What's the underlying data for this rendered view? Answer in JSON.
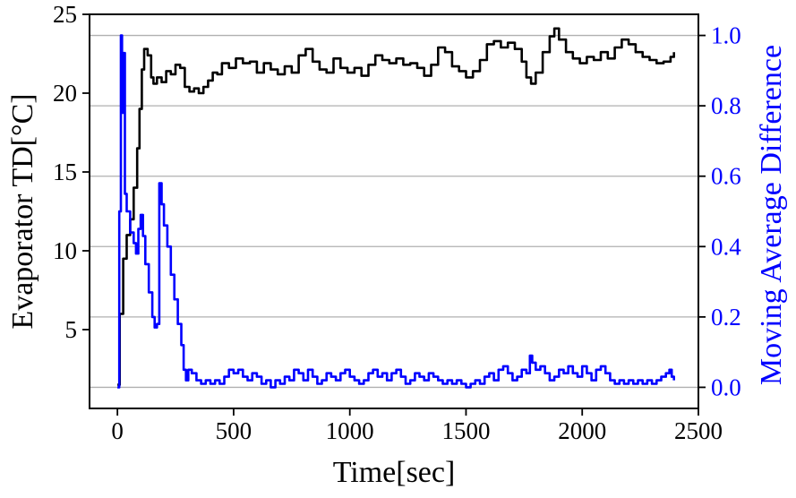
{
  "chart_data": {
    "type": "line",
    "xlabel": "Time[sec]",
    "ylabel_left": "Evaporator TD[°C]",
    "ylabel_right": "Moving Average Difference",
    "xlim": [
      -120,
      2500
    ],
    "ylim_left": [
      0,
      25
    ],
    "ylim_right": [
      -0.06,
      1.06
    ],
    "x_ticks": [
      0,
      500,
      1000,
      1500,
      2000,
      2500
    ],
    "y_ticks_left": [
      5,
      10,
      15,
      20,
      25
    ],
    "y_ticks_right": [
      0.0,
      0.2,
      0.4,
      0.6,
      0.8,
      1.0
    ],
    "y_tick_labels_right": [
      "0.0",
      "0.2",
      "0.4",
      "0.6",
      "0.8",
      "1.0"
    ],
    "grid": "horizontal-right-axis",
    "colors": {
      "left_series": "#000000",
      "right_series": "#0000ff",
      "right_axis": "#0000ff",
      "grid": "#b0b0b0"
    },
    "series": [
      {
        "axis": "left",
        "color": "#000000",
        "points": [
          [
            0,
            1.5
          ],
          [
            10,
            6
          ],
          [
            25,
            9.5
          ],
          [
            40,
            11
          ],
          [
            55,
            12
          ],
          [
            70,
            14
          ],
          [
            85,
            16.5
          ],
          [
            95,
            19
          ],
          [
            105,
            21.5
          ],
          [
            115,
            22.8
          ],
          [
            130,
            22.4
          ],
          [
            145,
            21
          ],
          [
            155,
            20.6
          ],
          [
            170,
            21
          ],
          [
            190,
            20.7
          ],
          [
            210,
            21.4
          ],
          [
            230,
            21.2
          ],
          [
            250,
            21.8
          ],
          [
            270,
            21.6
          ],
          [
            290,
            20.4
          ],
          [
            310,
            20.1
          ],
          [
            330,
            20.3
          ],
          [
            350,
            20
          ],
          [
            370,
            20.4
          ],
          [
            390,
            20.8
          ],
          [
            410,
            21.3
          ],
          [
            430,
            21.2
          ],
          [
            450,
            21.9
          ],
          [
            480,
            21.6
          ],
          [
            510,
            22.2
          ],
          [
            540,
            21.9
          ],
          [
            570,
            22.0
          ],
          [
            600,
            21.3
          ],
          [
            630,
            21.9
          ],
          [
            660,
            21.5
          ],
          [
            690,
            21.2
          ],
          [
            720,
            21.7
          ],
          [
            750,
            21.3
          ],
          [
            780,
            22.4
          ],
          [
            810,
            22.8
          ],
          [
            840,
            22.0
          ],
          [
            870,
            21.5
          ],
          [
            900,
            21.3
          ],
          [
            930,
            22.2
          ],
          [
            960,
            21.6
          ],
          [
            990,
            21.3
          ],
          [
            1020,
            21.6
          ],
          [
            1050,
            21.1
          ],
          [
            1080,
            21.8
          ],
          [
            1110,
            22.4
          ],
          [
            1140,
            22.1
          ],
          [
            1170,
            21.9
          ],
          [
            1200,
            22.2
          ],
          [
            1230,
            21.8
          ],
          [
            1260,
            21.9
          ],
          [
            1290,
            21.6
          ],
          [
            1320,
            21.1
          ],
          [
            1350,
            21.8
          ],
          [
            1380,
            22.9
          ],
          [
            1410,
            22.6
          ],
          [
            1440,
            21.7
          ],
          [
            1470,
            21.4
          ],
          [
            1500,
            21.0
          ],
          [
            1530,
            21.4
          ],
          [
            1560,
            22.1
          ],
          [
            1590,
            23.1
          ],
          [
            1620,
            23.3
          ],
          [
            1650,
            22.9
          ],
          [
            1680,
            23.2
          ],
          [
            1710,
            22.8
          ],
          [
            1740,
            22.0
          ],
          [
            1760,
            21.0
          ],
          [
            1780,
            20.6
          ],
          [
            1800,
            21.3
          ],
          [
            1830,
            22.6
          ],
          [
            1860,
            23.6
          ],
          [
            1880,
            24.1
          ],
          [
            1900,
            23.4
          ],
          [
            1930,
            22.6
          ],
          [
            1960,
            22.2
          ],
          [
            1990,
            21.9
          ],
          [
            2020,
            22.3
          ],
          [
            2050,
            22.1
          ],
          [
            2080,
            22.6
          ],
          [
            2110,
            22.2
          ],
          [
            2140,
            22.9
          ],
          [
            2170,
            23.4
          ],
          [
            2200,
            23.1
          ],
          [
            2230,
            22.6
          ],
          [
            2260,
            22.3
          ],
          [
            2290,
            22.1
          ],
          [
            2320,
            21.9
          ],
          [
            2350,
            22.0
          ],
          [
            2380,
            22.3
          ],
          [
            2395,
            22.6
          ]
        ]
      },
      {
        "axis": "right",
        "color": "#0000ff",
        "points": [
          [
            0,
            0.0
          ],
          [
            8,
            0.5
          ],
          [
            15,
            1.0
          ],
          [
            20,
            0.78
          ],
          [
            25,
            0.95
          ],
          [
            32,
            0.55
          ],
          [
            40,
            0.5
          ],
          [
            55,
            0.44
          ],
          [
            70,
            0.41
          ],
          [
            80,
            0.38
          ],
          [
            90,
            0.45
          ],
          [
            100,
            0.49
          ],
          [
            110,
            0.43
          ],
          [
            120,
            0.35
          ],
          [
            135,
            0.27
          ],
          [
            150,
            0.2
          ],
          [
            160,
            0.17
          ],
          [
            170,
            0.18
          ],
          [
            180,
            0.58
          ],
          [
            190,
            0.52
          ],
          [
            200,
            0.46
          ],
          [
            215,
            0.4
          ],
          [
            230,
            0.32
          ],
          [
            245,
            0.25
          ],
          [
            260,
            0.18
          ],
          [
            275,
            0.12
          ],
          [
            285,
            0.05
          ],
          [
            295,
            0.02
          ],
          [
            305,
            0.05
          ],
          [
            320,
            0.04
          ],
          [
            340,
            0.02
          ],
          [
            360,
            0.01
          ],
          [
            380,
            0.02
          ],
          [
            400,
            0.01
          ],
          [
            420,
            0.02
          ],
          [
            440,
            0.01
          ],
          [
            460,
            0.03
          ],
          [
            480,
            0.05
          ],
          [
            500,
            0.04
          ],
          [
            520,
            0.05
          ],
          [
            540,
            0.03
          ],
          [
            560,
            0.02
          ],
          [
            580,
            0.04
          ],
          [
            600,
            0.03
          ],
          [
            620,
            0.01
          ],
          [
            640,
            0.02
          ],
          [
            660,
            0.0
          ],
          [
            680,
            0.02
          ],
          [
            700,
            0.01
          ],
          [
            720,
            0.03
          ],
          [
            740,
            0.02
          ],
          [
            760,
            0.05
          ],
          [
            780,
            0.04
          ],
          [
            800,
            0.02
          ],
          [
            820,
            0.05
          ],
          [
            840,
            0.03
          ],
          [
            860,
            0.01
          ],
          [
            880,
            0.02
          ],
          [
            900,
            0.04
          ],
          [
            920,
            0.03
          ],
          [
            940,
            0.02
          ],
          [
            960,
            0.04
          ],
          [
            980,
            0.05
          ],
          [
            1000,
            0.03
          ],
          [
            1020,
            0.02
          ],
          [
            1040,
            0.01
          ],
          [
            1060,
            0.02
          ],
          [
            1080,
            0.04
          ],
          [
            1100,
            0.05
          ],
          [
            1120,
            0.03
          ],
          [
            1140,
            0.04
          ],
          [
            1160,
            0.02
          ],
          [
            1180,
            0.04
          ],
          [
            1200,
            0.05
          ],
          [
            1220,
            0.03
          ],
          [
            1240,
            0.01
          ],
          [
            1260,
            0.02
          ],
          [
            1280,
            0.04
          ],
          [
            1300,
            0.03
          ],
          [
            1320,
            0.02
          ],
          [
            1340,
            0.04
          ],
          [
            1360,
            0.03
          ],
          [
            1380,
            0.02
          ],
          [
            1400,
            0.01
          ],
          [
            1420,
            0.02
          ],
          [
            1440,
            0.01
          ],
          [
            1460,
            0.02
          ],
          [
            1480,
            0.01
          ],
          [
            1500,
            0.0
          ],
          [
            1520,
            0.01
          ],
          [
            1540,
            0.02
          ],
          [
            1560,
            0.01
          ],
          [
            1580,
            0.03
          ],
          [
            1600,
            0.04
          ],
          [
            1620,
            0.02
          ],
          [
            1640,
            0.05
          ],
          [
            1660,
            0.06
          ],
          [
            1680,
            0.04
          ],
          [
            1700,
            0.02
          ],
          [
            1720,
            0.03
          ],
          [
            1740,
            0.05
          ],
          [
            1760,
            0.04
          ],
          [
            1775,
            0.09
          ],
          [
            1785,
            0.07
          ],
          [
            1800,
            0.05
          ],
          [
            1820,
            0.06
          ],
          [
            1840,
            0.04
          ],
          [
            1860,
            0.02
          ],
          [
            1880,
            0.03
          ],
          [
            1900,
            0.05
          ],
          [
            1920,
            0.04
          ],
          [
            1940,
            0.06
          ],
          [
            1960,
            0.04
          ],
          [
            1980,
            0.03
          ],
          [
            2000,
            0.06
          ],
          [
            2020,
            0.04
          ],
          [
            2040,
            0.02
          ],
          [
            2060,
            0.05
          ],
          [
            2080,
            0.06
          ],
          [
            2100,
            0.04
          ],
          [
            2120,
            0.02
          ],
          [
            2140,
            0.01
          ],
          [
            2160,
            0.02
          ],
          [
            2180,
            0.01
          ],
          [
            2200,
            0.02
          ],
          [
            2220,
            0.01
          ],
          [
            2240,
            0.02
          ],
          [
            2260,
            0.01
          ],
          [
            2280,
            0.02
          ],
          [
            2300,
            0.01
          ],
          [
            2320,
            0.02
          ],
          [
            2340,
            0.03
          ],
          [
            2360,
            0.04
          ],
          [
            2375,
            0.05
          ],
          [
            2385,
            0.03
          ],
          [
            2395,
            0.02
          ]
        ]
      }
    ]
  }
}
